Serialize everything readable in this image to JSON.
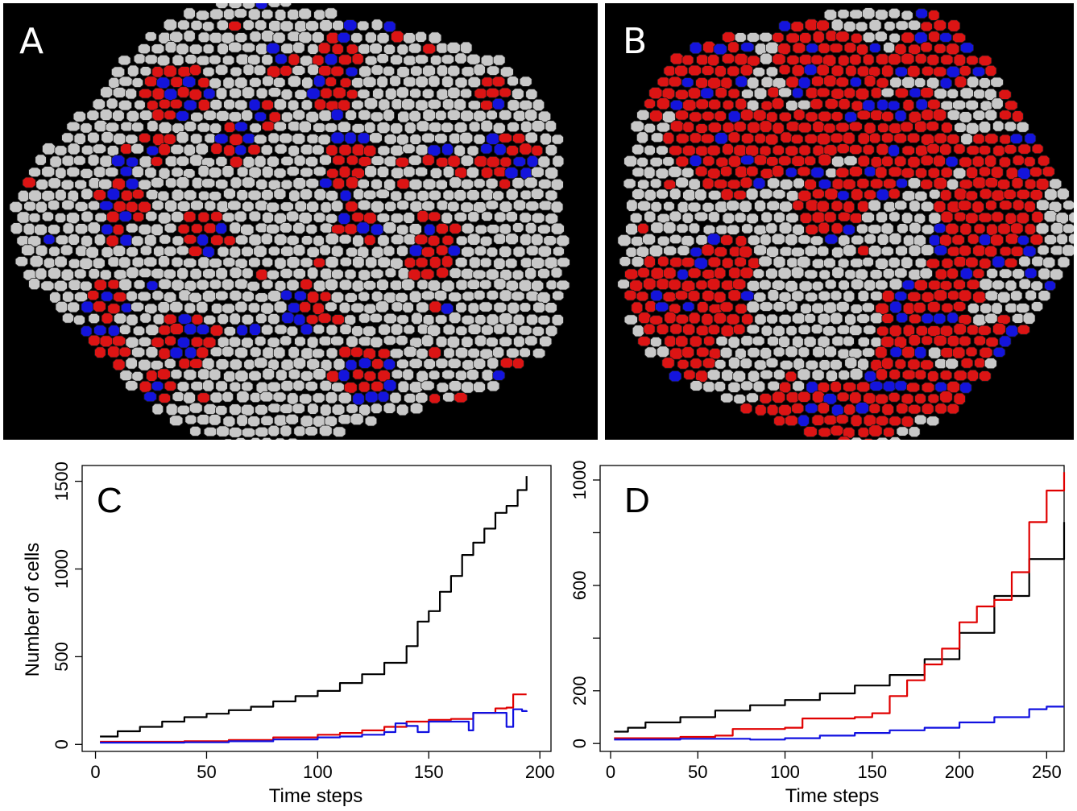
{
  "panels": {
    "a": {
      "letter": "A"
    },
    "b": {
      "letter": "B"
    }
  },
  "colors": {
    "healthy": "#c8c8c8",
    "red": "#dc1414",
    "blue": "#1414dc",
    "outline": "#1a1a1a",
    "background": "#000000"
  },
  "chart_data": [
    {
      "type": "line",
      "panel_letter": "C",
      "xlabel": "Time steps",
      "ylabel": "Number of cells",
      "xlim": [
        0,
        200
      ],
      "ylim": [
        0,
        1550
      ],
      "xticks": [
        0,
        50,
        100,
        150,
        200
      ],
      "yticks": [
        0,
        500,
        1000,
        1500
      ],
      "series": [
        {
          "color": "#000000",
          "x": [
            2,
            10,
            20,
            30,
            40,
            50,
            60,
            70,
            80,
            90,
            100,
            110,
            120,
            130,
            140,
            145,
            150,
            155,
            160,
            165,
            170,
            175,
            180,
            185,
            190,
            194
          ],
          "y": [
            45,
            75,
            100,
            130,
            155,
            175,
            195,
            215,
            245,
            275,
            305,
            350,
            400,
            465,
            560,
            700,
            760,
            870,
            960,
            1080,
            1150,
            1230,
            1320,
            1360,
            1450,
            1530
          ]
        },
        {
          "color": "#e00000",
          "x": [
            2,
            20,
            40,
            60,
            80,
            100,
            110,
            120,
            130,
            140,
            150,
            160,
            170,
            180,
            185,
            188,
            194
          ],
          "y": [
            15,
            15,
            18,
            25,
            40,
            55,
            65,
            80,
            100,
            130,
            140,
            145,
            180,
            205,
            210,
            285,
            285
          ]
        },
        {
          "color": "#1010e0",
          "x": [
            2,
            20,
            40,
            60,
            80,
            100,
            110,
            120,
            130,
            135,
            140,
            145,
            148,
            150,
            160,
            168,
            170,
            180,
            185,
            188,
            192,
            194
          ],
          "y": [
            10,
            10,
            12,
            18,
            28,
            40,
            45,
            55,
            70,
            120,
            105,
            70,
            70,
            130,
            130,
            80,
            180,
            180,
            100,
            200,
            190,
            185
          ]
        }
      ]
    },
    {
      "type": "line",
      "panel_letter": "D",
      "xlabel": "Time steps",
      "ylabel": "",
      "xlim": [
        0,
        260
      ],
      "ylim": [
        0,
        1000
      ],
      "xticks": [
        0,
        50,
        100,
        150,
        200,
        250
      ],
      "yticks": [
        0,
        200,
        600,
        1000
      ],
      "yticks_unlabeled": [
        400,
        800
      ],
      "series": [
        {
          "color": "#000000",
          "x": [
            2,
            10,
            20,
            40,
            60,
            80,
            100,
            120,
            140,
            160,
            180,
            200,
            220,
            240,
            260
          ],
          "y": [
            45,
            60,
            80,
            100,
            125,
            145,
            165,
            190,
            220,
            260,
            320,
            420,
            560,
            700,
            840
          ]
        },
        {
          "color": "#e00000",
          "x": [
            2,
            20,
            40,
            60,
            70,
            80,
            100,
            110,
            140,
            150,
            160,
            170,
            180,
            190,
            200,
            210,
            220,
            230,
            240,
            250,
            260
          ],
          "y": [
            20,
            20,
            25,
            30,
            55,
            55,
            60,
            95,
            100,
            115,
            180,
            240,
            300,
            360,
            460,
            520,
            545,
            650,
            840,
            960,
            1030
          ]
        },
        {
          "color": "#1010e0",
          "x": [
            2,
            20,
            40,
            60,
            80,
            100,
            120,
            140,
            160,
            180,
            200,
            220,
            240,
            250,
            260
          ],
          "y": [
            15,
            15,
            18,
            18,
            15,
            20,
            30,
            40,
            50,
            60,
            80,
            100,
            130,
            140,
            140
          ]
        }
      ]
    }
  ]
}
